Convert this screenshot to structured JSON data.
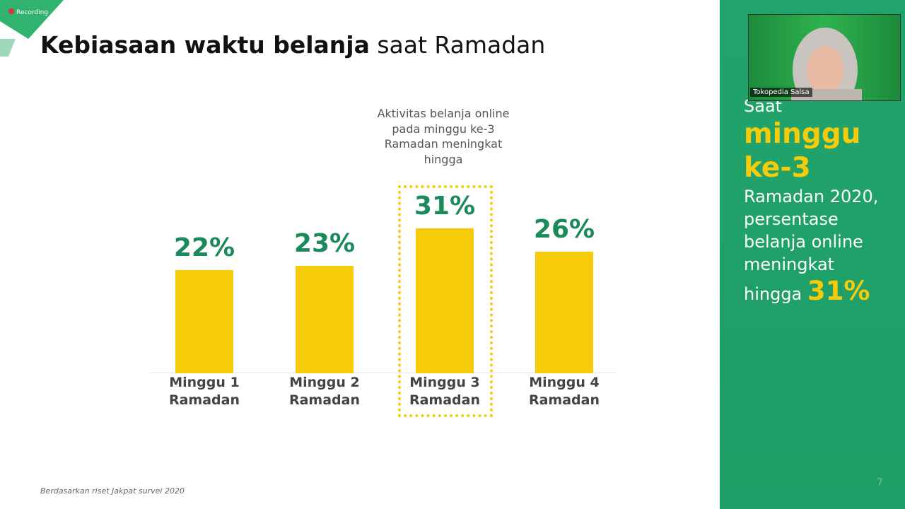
{
  "recording": "Recording",
  "title_bold": "Kebiasaan waktu belanja",
  "title_regular": "saat Ramadan",
  "annotation": "Aktivitas belanja online pada minggu ke-3 Ramadan meningkat hingga",
  "chart_data": {
    "type": "bar",
    "categories": [
      "Minggu 1 Ramadan",
      "Minggu 2 Ramadan",
      "Minggu 3 Ramadan",
      "Minggu 4 Ramadan"
    ],
    "values": [
      22,
      23,
      31,
      26
    ],
    "value_labels": [
      "22%",
      "23%",
      "31%",
      "26%"
    ],
    "color": "#f6cb0a"
  },
  "source": "Berdasarkan riset  Jakpat survei 2020",
  "side": {
    "line1": "Saat",
    "highlight": "minggu ke-3",
    "body": "Ramadan 2020, persentase belanja online meningkat",
    "prefix": "hingga",
    "figure": "31%"
  },
  "video": {
    "name": "Tokopedia Salsa"
  },
  "page_number": "7"
}
